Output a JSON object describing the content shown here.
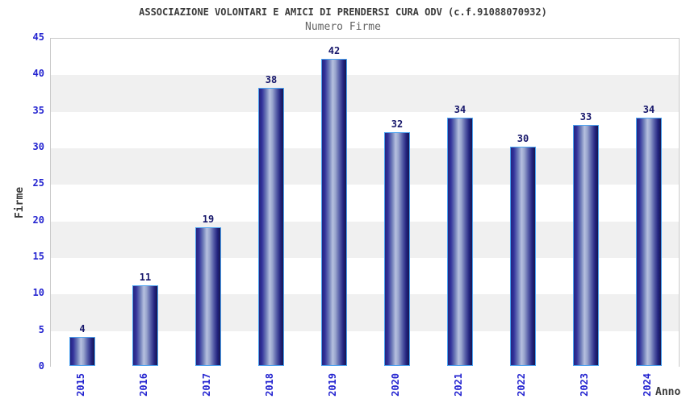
{
  "chart_data": {
    "type": "bar",
    "title": "ASSOCIAZIONE VOLONTARI E AMICI DI PRENDERSI CURA ODV (c.f.91088070932)",
    "subtitle": "Numero Firme",
    "xlabel": "Anno",
    "ylabel": "Firme",
    "categories": [
      "2015",
      "2016",
      "2017",
      "2018",
      "2019",
      "2020",
      "2021",
      "2022",
      "2023",
      "2024"
    ],
    "values": [
      4,
      11,
      19,
      38,
      42,
      32,
      34,
      30,
      33,
      34
    ],
    "ylim": [
      0,
      45
    ],
    "ytick_step": 5,
    "legend": "none",
    "grid": "horizontal-bands",
    "colors": {
      "bar_dark": "#1b1b78",
      "bar_light": "#b6c0df",
      "bar_outline": "#4da3f0",
      "axis_text": "#2424d0",
      "value_label": "#17176b",
      "band_gray": "#f0f0f0",
      "band_white": "#ffffff",
      "plot_border": "#c9c9c9",
      "title_text": "#3b3b3b",
      "subtitle_text": "#646464"
    }
  }
}
